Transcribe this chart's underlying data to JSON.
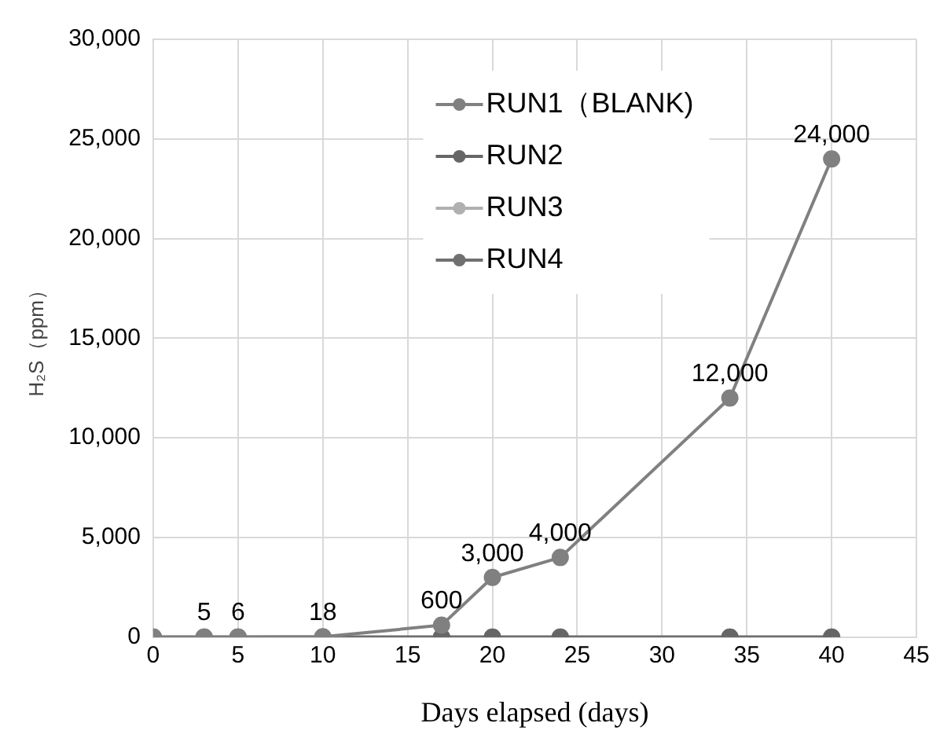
{
  "chart_data": {
    "type": "line",
    "xlabel": "Days elapsed (days)",
    "ylabel": "H₂S（ppm）",
    "x": [
      0,
      3,
      5,
      10,
      17,
      20,
      24,
      34,
      40
    ],
    "series": [
      {
        "name": "RUN1（BLANK)",
        "color": "#808080",
        "values": [
          0,
          5,
          6,
          18,
          600,
          3000,
          4000,
          12000,
          24000
        ],
        "value_labels": [
          null,
          "5",
          "6",
          "18",
          "600",
          "3,000",
          "4,000",
          "12,000",
          "24,000"
        ]
      },
      {
        "name": "RUN2",
        "color": "#666666",
        "values": [
          0,
          0,
          0,
          0,
          0,
          0,
          0,
          0,
          0
        ]
      },
      {
        "name": "RUN3",
        "color": "#b0b0b0",
        "values": [
          0,
          0,
          0,
          0,
          0,
          0,
          0,
          0,
          0
        ]
      },
      {
        "name": "RUN4",
        "color": "#707070",
        "values": [
          0,
          0,
          0,
          0,
          0,
          0,
          0,
          0,
          0
        ]
      }
    ],
    "xlim": [
      0,
      45
    ],
    "xticks": [
      0,
      5,
      10,
      15,
      20,
      25,
      30,
      35,
      40,
      45
    ],
    "ylim": [
      0,
      30000
    ],
    "yticks": [
      {
        "value": 0,
        "label": "0"
      },
      {
        "value": 5000,
        "label": "5,000"
      },
      {
        "value": 10000,
        "label": "10,000"
      },
      {
        "value": 15000,
        "label": "15,000"
      },
      {
        "value": 20000,
        "label": "20,000"
      },
      {
        "value": 25000,
        "label": "25,000"
      },
      {
        "value": 30000,
        "label": "30,000"
      }
    ],
    "grid": true,
    "legend": "top",
    "marker": "circle",
    "line_style": "solid"
  }
}
